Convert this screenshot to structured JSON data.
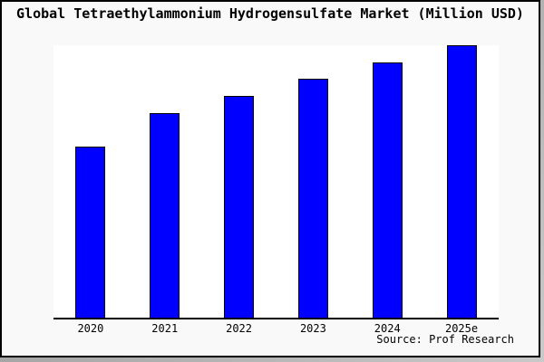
{
  "title": "Global Tetraethylammonium Hydrogensulfate Market (Million USD)",
  "source": "Source: Prof Research",
  "colors": {
    "bar_fill": "#0000ff",
    "bar_border": "#000000",
    "plot_background": "#ffffff",
    "figure_background": "#f9f9f9",
    "frame_border": "#000000",
    "shadow": "#9e9e9e",
    "text": "#000000"
  },
  "chart_data": {
    "type": "bar",
    "title": "Global Tetraethylammonium Hydrogensulfate Market (Million USD)",
    "categories": [
      "2020",
      "2021",
      "2022",
      "2023",
      "2024",
      "2025e"
    ],
    "values": [
      62.8,
      75.2,
      81.5,
      87.7,
      93.7,
      100
    ],
    "value_basis": "relative height, tallest bar (2025e) = 100; no y-axis tick labels shown",
    "xlabel": "",
    "ylabel": "",
    "ylim": [
      0,
      100
    ],
    "grid": false,
    "legend": false,
    "annotations": [
      "Source: Prof Research"
    ]
  }
}
